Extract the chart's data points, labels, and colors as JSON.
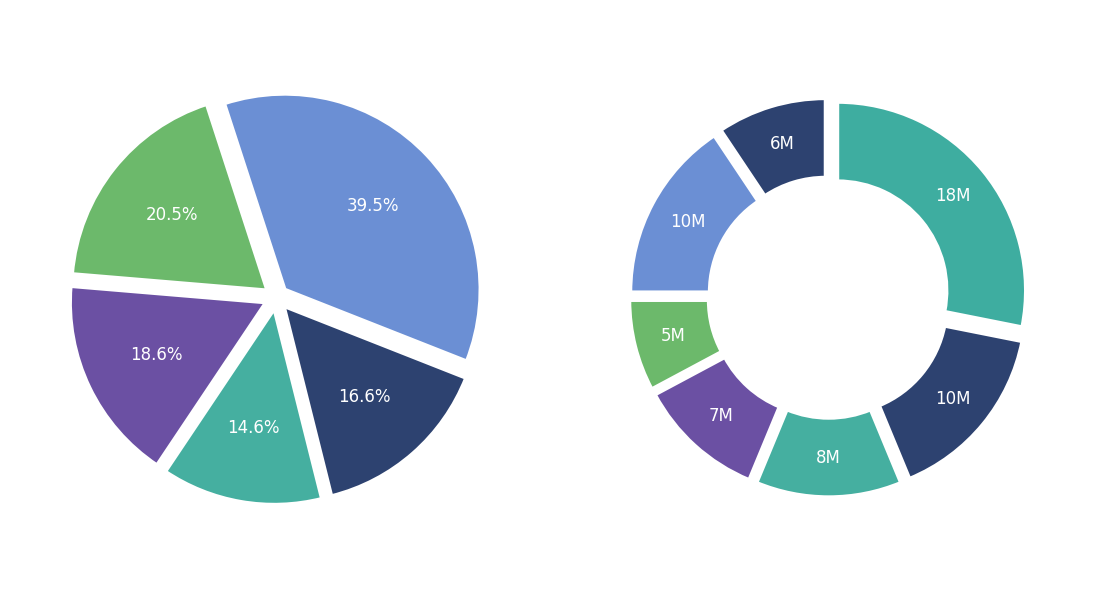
{
  "pie": {
    "values": [
      39.5,
      16.6,
      14.6,
      18.6,
      20.5
    ],
    "labels": [
      "39.5%",
      "16.6%",
      "14.6%",
      "18.6%",
      "20.5%"
    ],
    "colors": [
      "#6B8FD4",
      "#2D4270",
      "#45AFA0",
      "#6B50A3",
      "#6CB96B"
    ],
    "explode": [
      0.06,
      0.06,
      0.06,
      0.06,
      0.06
    ],
    "startangle": 108
  },
  "donut": {
    "values": [
      18,
      10,
      8,
      7,
      5,
      10,
      6
    ],
    "labels": [
      "18M",
      "10M",
      "8M",
      "7M",
      "5M",
      "10M",
      "6M"
    ],
    "colors": [
      "#3EADA0",
      "#2D4270",
      "#45AFA0",
      "#6B50A3",
      "#6CB96B",
      "#6B8FD4",
      "#2D4270"
    ],
    "explode": [
      0.06,
      0.06,
      0.06,
      0.06,
      0.06,
      0.06,
      0.06
    ],
    "startangle": 90,
    "donut_width": 0.42
  },
  "background_color": "#ffffff",
  "label_color": "#ffffff",
  "label_fontsize": 12
}
